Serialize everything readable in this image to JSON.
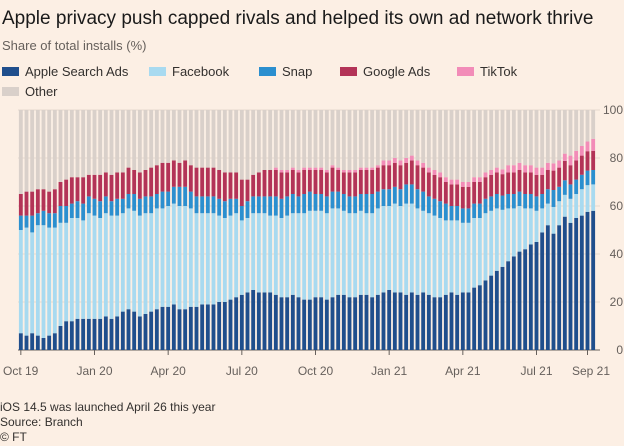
{
  "title": "Apple privacy push capped rivals and helped its own ad network thrive",
  "subtitle": "Share of total installs (%)",
  "footnotes": {
    "note": "iOS 14.5 was launched April 26 this year",
    "source": "Source: Branch",
    "credit": "© FT"
  },
  "colors": {
    "background": "#fcefe4",
    "apple": "#1f4e8c",
    "facebook": "#a8daf0",
    "snap": "#2b8fcf",
    "google": "#b33357",
    "tiktok": "#f28cb8",
    "other": "#d9d0ca"
  },
  "chart_data": {
    "type": "bar",
    "stacked": true,
    "title": "Apple privacy push capped rivals and helped its own ad network thrive",
    "ylabel": "Share of total installs (%)",
    "ylim": [
      0,
      100
    ],
    "yticks": [
      0,
      20,
      40,
      60,
      80,
      100
    ],
    "y_axis_position": "right",
    "xticks": [
      "Oct 19",
      "Jan 20",
      "Apr 20",
      "Jul 20",
      "Oct 20",
      "Jan 21",
      "Apr 21",
      "Jul 21",
      "Sep 21"
    ],
    "xtick_index": [
      0,
      13,
      26,
      39,
      52,
      65,
      78,
      91,
      100
    ],
    "period": "weekly, Oct 2019 to Sep 2021",
    "legend_position": "top",
    "series": [
      {
        "name": "Apple Search Ads",
        "color": "#1f4e8c",
        "values": [
          7,
          6,
          7,
          6,
          5,
          6,
          7,
          10,
          12,
          12,
          13,
          13,
          13,
          13,
          13,
          14,
          13,
          14,
          16,
          17,
          16,
          14,
          15,
          16,
          17,
          18,
          18,
          19,
          17,
          17,
          18,
          18,
          19,
          19,
          19,
          20,
          20,
          21,
          22,
          23,
          24,
          25,
          24,
          24,
          24,
          23,
          22,
          22,
          23,
          22,
          21,
          21,
          22,
          22,
          21,
          22,
          23,
          23,
          22,
          22,
          23,
          23,
          22,
          23,
          24,
          25,
          24,
          24,
          23,
          24,
          23,
          24,
          23,
          22,
          22,
          23,
          24,
          23,
          24,
          24,
          26,
          27,
          29,
          31,
          33,
          35,
          37,
          39,
          41,
          42,
          44,
          45,
          49,
          52,
          48,
          52,
          55,
          53,
          55,
          56,
          57,
          58
        ]
      },
      {
        "name": "Facebook",
        "color": "#a8daf0",
        "values": [
          43,
          45,
          42,
          46,
          47,
          45,
          44,
          43,
          41,
          43,
          42,
          41,
          44,
          43,
          42,
          43,
          43,
          42,
          41,
          42,
          42,
          42,
          42,
          41,
          42,
          41,
          42,
          42,
          43,
          43,
          41,
          39,
          38,
          38,
          38,
          36,
          35,
          35,
          35,
          31,
          31,
          32,
          33,
          33,
          32,
          33,
          33,
          34,
          34,
          35,
          36,
          37,
          36,
          36,
          36,
          37,
          36,
          35,
          35,
          35,
          35,
          34,
          35,
          36,
          36,
          35,
          37,
          36,
          38,
          37,
          36,
          34,
          34,
          34,
          33,
          31,
          30,
          31,
          29,
          29,
          29,
          28,
          28,
          27,
          26,
          24,
          22,
          20,
          19,
          17,
          15,
          13,
          10,
          9,
          11,
          10,
          9,
          10,
          10,
          11,
          11,
          11
        ]
      },
      {
        "name": "Snap",
        "color": "#2b8fcf",
        "values": [
          6,
          5,
          7,
          5,
          6,
          6,
          6,
          7,
          7,
          6,
          7,
          7,
          7,
          7,
          7,
          7,
          6,
          7,
          6,
          6,
          7,
          7,
          7,
          7,
          6,
          7,
          6,
          7,
          8,
          8,
          7,
          7,
          7,
          7,
          7,
          7,
          7,
          7,
          6,
          6,
          7,
          7,
          7,
          7,
          8,
          8,
          8,
          8,
          8,
          7,
          8,
          8,
          7,
          7,
          7,
          7,
          7,
          7,
          7,
          7,
          7,
          8,
          8,
          7,
          7,
          7,
          7,
          7,
          8,
          8,
          8,
          8,
          7,
          7,
          7,
          7,
          6,
          6,
          6,
          6,
          6,
          6,
          6,
          6,
          6,
          6,
          6,
          6,
          6,
          6,
          6,
          6,
          6,
          6,
          7,
          6,
          6,
          6,
          6,
          6,
          6,
          6
        ]
      },
      {
        "name": "Google Ads",
        "color": "#b33357",
        "values": [
          9,
          10,
          10,
          10,
          9,
          9,
          10,
          10,
          11,
          11,
          10,
          11,
          9,
          10,
          11,
          10,
          11,
          11,
          11,
          11,
          10,
          11,
          11,
          12,
          12,
          12,
          12,
          11,
          10,
          11,
          11,
          12,
          12,
          12,
          12,
          12,
          12,
          11,
          11,
          11,
          9,
          9,
          10,
          11,
          11,
          11,
          11,
          10,
          10,
          10,
          10,
          9,
          10,
          10,
          10,
          10,
          9,
          9,
          10,
          10,
          10,
          10,
          10,
          10,
          10,
          10,
          10,
          10,
          9,
          10,
          10,
          10,
          10,
          10,
          10,
          9,
          9,
          9,
          9,
          9,
          9,
          9,
          9,
          9,
          9,
          9,
          9,
          9,
          9,
          9,
          9,
          9,
          8,
          8,
          8,
          8,
          8,
          8,
          8,
          8,
          8,
          8
        ]
      },
      {
        "name": "TikTok",
        "color": "#f28cb8",
        "values": [
          0,
          0,
          0,
          0,
          0,
          0,
          0,
          0,
          0,
          0,
          0,
          0,
          0,
          0,
          0,
          0,
          0,
          0,
          0,
          0,
          0,
          0,
          0,
          0,
          0,
          0,
          0,
          0,
          0,
          0,
          0,
          0,
          0,
          0,
          0,
          0,
          0,
          0,
          0,
          0,
          0,
          0,
          0,
          0,
          0,
          1,
          1,
          1,
          1,
          1,
          1,
          1,
          1,
          1,
          1,
          1,
          1,
          1,
          1,
          1,
          1,
          1,
          1,
          1,
          2,
          2,
          2,
          2,
          2,
          2,
          2,
          2,
          2,
          2,
          2,
          2,
          2,
          2,
          2,
          2,
          2,
          2,
          2,
          2,
          2,
          2,
          3,
          3,
          3,
          3,
          3,
          3,
          3,
          3,
          3,
          3,
          3,
          4,
          4,
          4,
          4,
          5
        ]
      },
      {
        "name": "Other",
        "color": "#d9d0ca",
        "values": [
          35,
          34,
          34,
          33,
          33,
          34,
          33,
          30,
          29,
          28,
          28,
          28,
          27,
          27,
          27,
          26,
          27,
          26,
          26,
          24,
          25,
          26,
          25,
          24,
          23,
          22,
          22,
          21,
          22,
          21,
          23,
          24,
          24,
          24,
          24,
          25,
          26,
          26,
          26,
          29,
          29,
          27,
          26,
          25,
          25,
          24,
          25,
          25,
          24,
          25,
          24,
          24,
          24,
          24,
          25,
          23,
          24,
          25,
          25,
          25,
          24,
          24,
          24,
          23,
          21,
          21,
          20,
          21,
          20,
          19,
          21,
          22,
          24,
          25,
          26,
          28,
          29,
          29,
          30,
          30,
          28,
          28,
          26,
          25,
          24,
          25,
          23,
          23,
          22,
          23,
          23,
          24,
          24,
          22,
          22,
          21,
          18,
          19,
          17,
          15,
          13,
          12
        ]
      }
    ]
  }
}
